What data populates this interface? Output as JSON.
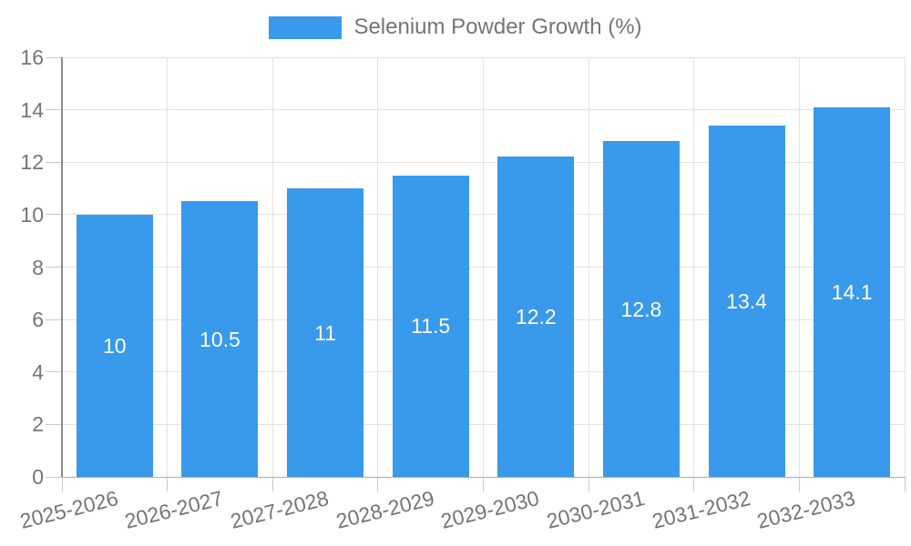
{
  "legend": {
    "label": "Selenium Powder Growth (%)"
  },
  "colors": {
    "bar": "#3999EB",
    "axis_text": "#757575",
    "bar_value_text": "#FFFFFF",
    "grid_line": "#E3E3E3",
    "tick_line": "#C9C9C9",
    "axis_line_y": "#8C8C8C",
    "axis_line_x": "#ABABAB",
    "background": "#FFFFFF"
  },
  "chart_data": {
    "type": "bar",
    "title": "Selenium Powder Growth (%)",
    "categories": [
      "2025-2026",
      "2026-2027",
      "2027-2028",
      "2028-2029",
      "2029-2030",
      "2030-2031",
      "2031-2032",
      "2032-2033"
    ],
    "series": [
      {
        "name": "Selenium Powder Growth (%)",
        "values": [
          10,
          10.5,
          11,
          11.5,
          12.2,
          12.8,
          13.4,
          14.1
        ]
      }
    ],
    "bar_value_labels": [
      "10",
      "10.5",
      "11",
      "11.5",
      "12.2",
      "12.8",
      "13.4",
      "14.1"
    ],
    "xlabel": "",
    "ylabel": "",
    "ylim": [
      0,
      16
    ],
    "y_ticks": [
      0,
      2,
      4,
      6,
      8,
      10,
      12,
      14,
      16
    ],
    "grid": true,
    "legend_position": "top-center",
    "x_tick_label_rotation_deg": -14
  }
}
